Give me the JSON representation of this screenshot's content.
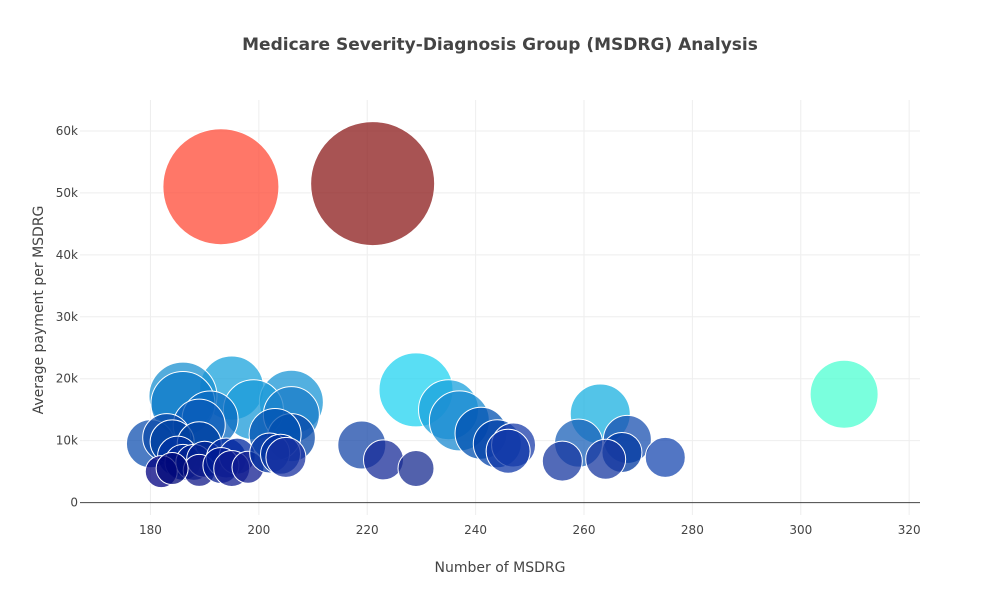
{
  "chart_data": {
    "type": "scatter",
    "title": "Medicare Severity-Diagnosis Group (MSDRG) Analysis",
    "xlabel": "Number of MSDRG",
    "ylabel": "Average payment per MSDRG",
    "xlim": [
      167,
      322
    ],
    "ylim": [
      -2000,
      65000
    ],
    "x_ticks": [
      180,
      200,
      220,
      240,
      260,
      280,
      300,
      320
    ],
    "x_tick_labels": [
      "180",
      "200",
      "220",
      "240",
      "260",
      "280",
      "300",
      "320"
    ],
    "y_ticks": [
      0,
      10000,
      20000,
      30000,
      40000,
      50000,
      60000
    ],
    "y_tick_labels": [
      "0",
      "10k",
      "20k",
      "30k",
      "40k",
      "50k",
      "60k"
    ],
    "grid": true,
    "legend": "none",
    "points": [
      {
        "x": 193,
        "y": 51000,
        "size": 58,
        "color": "#ff4a36"
      },
      {
        "x": 221,
        "y": 51500,
        "size": 62,
        "color": "#8b1a1a"
      },
      {
        "x": 308,
        "y": 17500,
        "size": 34,
        "color": "#4dffd2"
      },
      {
        "x": 229,
        "y": 18200,
        "size": 37,
        "color": "#22d3f0"
      },
      {
        "x": 195,
        "y": 18500,
        "size": 32,
        "color": "#1aa3dc"
      },
      {
        "x": 206,
        "y": 16200,
        "size": 32,
        "color": "#1a95d6"
      },
      {
        "x": 186,
        "y": 17200,
        "size": 34,
        "color": "#1a90d0"
      },
      {
        "x": 263,
        "y": 14300,
        "size": 30,
        "color": "#1ab0e0"
      },
      {
        "x": 235,
        "y": 15000,
        "size": 30,
        "color": "#1aa0dc"
      },
      {
        "x": 199,
        "y": 15000,
        "size": 30,
        "color": "#1a9ad8"
      },
      {
        "x": 237,
        "y": 13200,
        "size": 30,
        "color": "#1a8ad0"
      },
      {
        "x": 206,
        "y": 14200,
        "size": 28,
        "color": "#1a7cc8"
      },
      {
        "x": 186,
        "y": 16000,
        "size": 32,
        "color": "#0a78c8"
      },
      {
        "x": 191,
        "y": 13500,
        "size": 28,
        "color": "#0a6ac0"
      },
      {
        "x": 189,
        "y": 12500,
        "size": 26,
        "color": "#0a5ab8"
      },
      {
        "x": 241,
        "y": 11200,
        "size": 26,
        "color": "#0050b0"
      },
      {
        "x": 244,
        "y": 9500,
        "size": 24,
        "color": "#0040a8"
      },
      {
        "x": 247,
        "y": 9300,
        "size": 22,
        "color": "#1a3caa"
      },
      {
        "x": 246,
        "y": 8300,
        "size": 22,
        "color": "#1038a8"
      },
      {
        "x": 206,
        "y": 10500,
        "size": 24,
        "color": "#0848a8"
      },
      {
        "x": 203,
        "y": 11000,
        "size": 26,
        "color": "#0050b0"
      },
      {
        "x": 259,
        "y": 9600,
        "size": 24,
        "color": "#1a60b8"
      },
      {
        "x": 268,
        "y": 10200,
        "size": 24,
        "color": "#1a50b0"
      },
      {
        "x": 267,
        "y": 8100,
        "size": 20,
        "color": "#0038a0"
      },
      {
        "x": 275,
        "y": 7300,
        "size": 20,
        "color": "#1848b0"
      },
      {
        "x": 264,
        "y": 7000,
        "size": 20,
        "color": "#1838a0"
      },
      {
        "x": 256,
        "y": 6700,
        "size": 20,
        "color": "#1838a0"
      },
      {
        "x": 219,
        "y": 9300,
        "size": 24,
        "color": "#1848a8"
      },
      {
        "x": 223,
        "y": 6900,
        "size": 20,
        "color": "#182c98"
      },
      {
        "x": 229,
        "y": 5500,
        "size": 18,
        "color": "#182c90"
      },
      {
        "x": 180,
        "y": 9500,
        "size": 24,
        "color": "#1050b0"
      },
      {
        "x": 183,
        "y": 10500,
        "size": 24,
        "color": "#0a48a8"
      },
      {
        "x": 184,
        "y": 9800,
        "size": 22,
        "color": "#0040a0"
      },
      {
        "x": 189,
        "y": 9500,
        "size": 22,
        "color": "#0040a0"
      },
      {
        "x": 185,
        "y": 7500,
        "size": 20,
        "color": "#0030a0"
      },
      {
        "x": 186,
        "y": 6500,
        "size": 18,
        "color": "#002898"
      },
      {
        "x": 188,
        "y": 6500,
        "size": 18,
        "color": "#002090"
      },
      {
        "x": 190,
        "y": 7000,
        "size": 18,
        "color": "#002090"
      },
      {
        "x": 189,
        "y": 5200,
        "size": 16,
        "color": "#101888"
      },
      {
        "x": 182,
        "y": 5000,
        "size": 16,
        "color": "#000080"
      },
      {
        "x": 184,
        "y": 5500,
        "size": 16,
        "color": "#000878"
      },
      {
        "x": 194,
        "y": 7200,
        "size": 20,
        "color": "#0028a0"
      },
      {
        "x": 196,
        "y": 7500,
        "size": 18,
        "color": "#0028a0"
      },
      {
        "x": 193,
        "y": 6000,
        "size": 18,
        "color": "#001890"
      },
      {
        "x": 195,
        "y": 5500,
        "size": 18,
        "color": "#101c90"
      },
      {
        "x": 198,
        "y": 5700,
        "size": 16,
        "color": "#101c90"
      },
      {
        "x": 202,
        "y": 8000,
        "size": 20,
        "color": "#0030a0"
      },
      {
        "x": 204,
        "y": 7800,
        "size": 20,
        "color": "#0030a0"
      },
      {
        "x": 205,
        "y": 7300,
        "size": 20,
        "color": "#1830a0"
      }
    ]
  }
}
